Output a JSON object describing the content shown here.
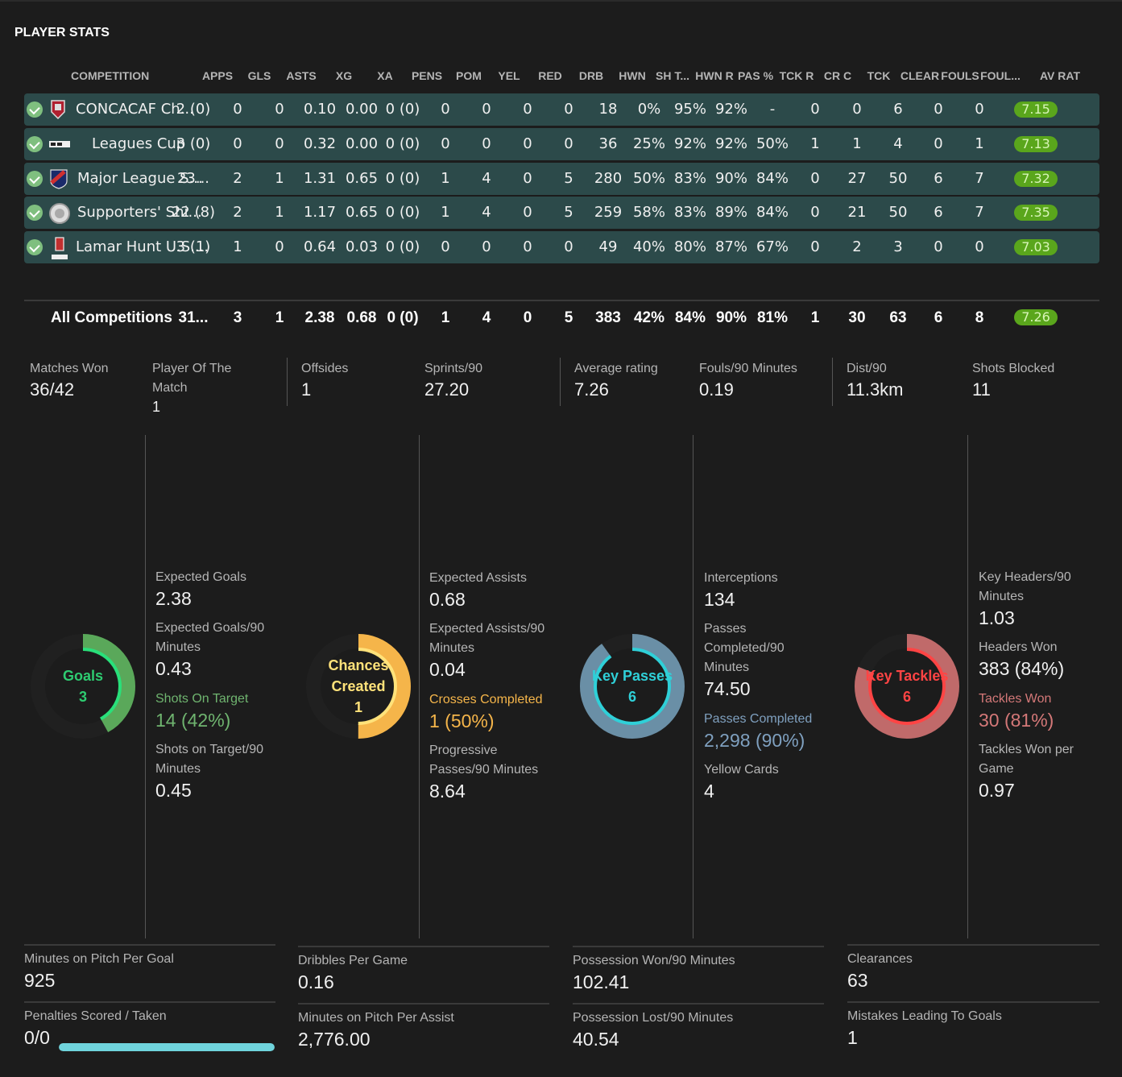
{
  "title": "PLAYER STATS",
  "columns": [
    "COMPETITION",
    "APPS",
    "GLS",
    "ASTS",
    "XG",
    "XA",
    "PENS",
    "POM",
    "YEL",
    "RED",
    "DRB",
    "HWN",
    "SH T...",
    "HWN R",
    "PAS %",
    "TCK R",
    "CR C",
    "TCK",
    "CLEAR",
    "FOULS",
    "FOUL...",
    "AV RAT"
  ],
  "rows": [
    {
      "name": "CONCACAF Ch...",
      "apps": "2 (0)",
      "gls": "0",
      "asts": "0",
      "xg": "0.10",
      "xa": "0.00",
      "pens": "0 (0)",
      "pom": "0",
      "yel": "0",
      "red": "0",
      "drb": "0",
      "hwn": "18",
      "sht": "0%",
      "hwnr": "95%",
      "pas": "92%",
      "tckr": "-",
      "crc": "0",
      "tck": "0",
      "clear": "6",
      "fouls": "0",
      "foul2": "0",
      "rat": "7.15",
      "logo": "concacaf-logo"
    },
    {
      "name": "Leagues Cup",
      "apps": "3 (0)",
      "gls": "0",
      "asts": "0",
      "xg": "0.32",
      "xa": "0.00",
      "pens": "0 (0)",
      "pom": "0",
      "yel": "0",
      "red": "0",
      "drb": "0",
      "hwn": "36",
      "sht": "25%",
      "hwnr": "92%",
      "pas": "92%",
      "tckr": "50%",
      "crc": "1",
      "tck": "1",
      "clear": "4",
      "fouls": "0",
      "foul2": "1",
      "rat": "7.13",
      "logo": "leagues-cup-logo"
    },
    {
      "name": "Major League S...",
      "apps": "23...",
      "gls": "2",
      "asts": "1",
      "xg": "1.31",
      "xa": "0.65",
      "pens": "0 (0)",
      "pom": "1",
      "yel": "4",
      "red": "0",
      "drb": "5",
      "hwn": "280",
      "sht": "50%",
      "hwnr": "83%",
      "pas": "90%",
      "tckr": "84%",
      "crc": "0",
      "tck": "27",
      "clear": "50",
      "fouls": "6",
      "foul2": "7",
      "rat": "7.32",
      "logo": "mls-logo"
    },
    {
      "name": "Supporters' Shi...",
      "apps": "22 (8)",
      "gls": "2",
      "asts": "1",
      "xg": "1.17",
      "xa": "0.65",
      "pens": "0 (0)",
      "pom": "1",
      "yel": "4",
      "red": "0",
      "drb": "5",
      "hwn": "259",
      "sht": "58%",
      "hwnr": "83%",
      "pas": "89%",
      "tckr": "84%",
      "crc": "0",
      "tck": "21",
      "clear": "50",
      "fouls": "6",
      "foul2": "7",
      "rat": "7.35",
      "logo": "supporters-shield-logo"
    },
    {
      "name": "Lamar Hunt U.S....",
      "apps": "3 (1)",
      "gls": "1",
      "asts": "0",
      "xg": "0.64",
      "xa": "0.03",
      "pens": "0 (0)",
      "pom": "0",
      "yel": "0",
      "red": "0",
      "drb": "0",
      "hwn": "49",
      "sht": "40%",
      "hwnr": "80%",
      "pas": "87%",
      "tckr": "67%",
      "crc": "0",
      "tck": "2",
      "clear": "3",
      "fouls": "0",
      "foul2": "0",
      "rat": "7.03",
      "logo": "us-open-cup-logo"
    }
  ],
  "all": {
    "name": "All Competitions",
    "apps": "31...",
    "gls": "3",
    "asts": "1",
    "xg": "2.38",
    "xa": "0.68",
    "pens": "0 (0)",
    "pom": "1",
    "yel": "4",
    "red": "0",
    "drb": "5",
    "hwn": "383",
    "sht": "42%",
    "hwnr": "84%",
    "pas": "90%",
    "tckr": "81%",
    "crc": "1",
    "tck": "30",
    "clear": "63",
    "fouls": "6",
    "foul2": "8",
    "rat": "7.26"
  },
  "summary": [
    {
      "label": "Matches Won",
      "value": "36/42"
    },
    {
      "label": "Player Of The Match",
      "value": "1"
    },
    {
      "label": "Offsides",
      "value": "1"
    },
    {
      "label": "Sprints/90",
      "value": "27.20"
    },
    {
      "label": "Average rating",
      "value": "7.26"
    },
    {
      "label": "Fouls/90 Minutes",
      "value": "0.19"
    },
    {
      "label": "Dist/90",
      "value": "11.3km"
    },
    {
      "label": "Shots Blocked",
      "value": "11"
    }
  ],
  "rings": [
    {
      "label1": "Goals",
      "label2": "3",
      "color": "#5aa85a",
      "text_color": "#2ecc71",
      "accent": "#29e07a",
      "fraction": 0.42
    },
    {
      "label1": "Chances",
      "label2": "Created",
      "label3": "1",
      "color": "#f5b54a",
      "text_color": "#ffe27a",
      "accent": "#ffe27a",
      "fraction": 0.5
    },
    {
      "label1": "Key Passes",
      "label2": "6",
      "color": "#6a8fa6",
      "text_color": "#2fd0d8",
      "accent": "#2fd0d8",
      "fraction": 0.9
    },
    {
      "label1": "Key Tackles",
      "label2": "6",
      "color": "#c06a6a",
      "text_color": "#ff4444",
      "accent": "#ff4444",
      "fraction": 0.81
    }
  ],
  "col1": [
    {
      "label": "Expected Goals",
      "value": "2.38"
    },
    {
      "label": "Expected Goals/90 Minutes",
      "value": "0.43"
    },
    {
      "label": "Shots On Target",
      "value": "14 (42%)",
      "color": "#6fb46f"
    },
    {
      "label": "Shots on Target/90 Minutes",
      "value": "0.45"
    }
  ],
  "col2": [
    {
      "label": "Expected Assists",
      "value": "0.68"
    },
    {
      "label": "Expected Assists/90 Minutes",
      "value": "0.04"
    },
    {
      "label": "Crosses Completed",
      "value": "1 (50%)",
      "color": "#f5b54a"
    },
    {
      "label": "Progressive Passes/90 Minutes",
      "value": "8.64"
    }
  ],
  "col3": [
    {
      "label": "Interceptions",
      "value": "134"
    },
    {
      "label": "Passes Completed/90 Minutes",
      "value": "74.50"
    },
    {
      "label": "Passes Completed",
      "value": "2,298 (90%)",
      "color": "#7fa0bf"
    },
    {
      "label": "Yellow Cards",
      "value": "4"
    }
  ],
  "col4": [
    {
      "label": "Key Headers/90 Minutes",
      "value": "1.03"
    },
    {
      "label": "Headers Won",
      "value": "383 (84%)"
    },
    {
      "label": "Tackles Won",
      "value": "30 (81%)",
      "color": "#d47878"
    },
    {
      "label": "Tackles Won per Game",
      "value": "0.97"
    }
  ],
  "bottom": [
    [
      {
        "label": "Minutes on Pitch Per Goal",
        "value": "925"
      },
      {
        "label": "Penalties Scored / Taken",
        "value": "0/0",
        "progress": 1.0
      }
    ],
    [
      {
        "label": "Dribbles Per Game",
        "value": "0.16"
      },
      {
        "label": "Minutes on Pitch Per Assist",
        "value": "2,776.00"
      }
    ],
    [
      {
        "label": "Possession Won/90 Minutes",
        "value": "102.41"
      },
      {
        "label": "Possession Lost/90 Minutes",
        "value": "40.54"
      }
    ],
    [
      {
        "label": "Clearances",
        "value": "63"
      },
      {
        "label": "Mistakes Leading To Goals",
        "value": "1"
      }
    ]
  ]
}
